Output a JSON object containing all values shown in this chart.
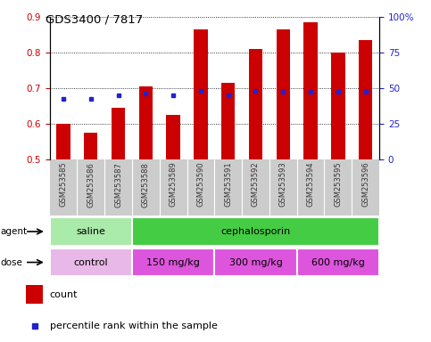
{
  "title": "GDS3400 / 7817",
  "samples": [
    "GSM253585",
    "GSM253586",
    "GSM253587",
    "GSM253588",
    "GSM253589",
    "GSM253590",
    "GSM253591",
    "GSM253592",
    "GSM253593",
    "GSM253594",
    "GSM253595",
    "GSM253596"
  ],
  "bar_values": [
    0.6,
    0.575,
    0.645,
    0.705,
    0.625,
    0.865,
    0.715,
    0.81,
    0.865,
    0.885,
    0.8,
    0.835
  ],
  "dot_values": [
    0.67,
    0.67,
    0.68,
    0.685,
    0.68,
    0.693,
    0.68,
    0.693,
    0.69,
    0.69,
    0.69,
    0.69
  ],
  "bar_bottom": 0.5,
  "ylim": [
    0.5,
    0.9
  ],
  "yticks_left": [
    0.5,
    0.6,
    0.7,
    0.8,
    0.9
  ],
  "yticks_right": [
    0,
    25,
    50,
    75,
    100
  ],
  "ytick_labels_right": [
    "0",
    "25",
    "50",
    "75",
    "100%"
  ],
  "bar_color": "#cc0000",
  "dot_color": "#2222cc",
  "agent_labels": [
    {
      "text": "saline",
      "start": 0,
      "end": 3,
      "color": "#aaeaaa"
    },
    {
      "text": "cephalosporin",
      "start": 3,
      "end": 12,
      "color": "#44cc44"
    }
  ],
  "dose_labels": [
    {
      "text": "control",
      "start": 0,
      "end": 3,
      "color": "#e8b8e8"
    },
    {
      "text": "150 mg/kg",
      "start": 3,
      "end": 6,
      "color": "#dd55dd"
    },
    {
      "text": "300 mg/kg",
      "start": 6,
      "end": 9,
      "color": "#dd55dd"
    },
    {
      "text": "600 mg/kg",
      "start": 9,
      "end": 12,
      "color": "#dd55dd"
    }
  ],
  "tick_label_color_left": "#cc0000",
  "tick_label_color_right": "#2222cc",
  "xtick_bg_color": "#cccccc",
  "figsize": [
    4.83,
    3.84
  ],
  "dpi": 100
}
